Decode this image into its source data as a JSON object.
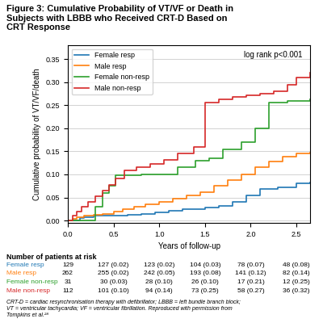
{
  "chart_data": {
    "type": "step",
    "title": "Figure 3: Cumulative Probability of VT/VF or Death in\nSubjects with LBBB who Received CRT-D Based on\nCRT Response",
    "xlabel": "Years of follow-up",
    "ylabel": "Cumulative probability of VT/VF/death",
    "annotation": "log rank p<0.001",
    "xlim": [
      0,
      2.65
    ],
    "ylim": [
      -0.005,
      0.38
    ],
    "xticks": [
      0.0,
      0.5,
      1.0,
      1.5,
      2.0,
      2.5
    ],
    "yticks": [
      {
        "value": 0.0,
        "label": "0.00"
      },
      {
        "value": 0.05,
        "label": "0.05"
      },
      {
        "value": 0.1,
        "label": "0.10"
      },
      {
        "value": 0.15,
        "label": "0.15"
      },
      {
        "value": 0.2,
        "label": "0.20"
      },
      {
        "value": 0.25,
        "label": "0.25"
      },
      {
        "value": 0.3,
        "label": "0.30"
      },
      {
        "value": 0.35,
        "label": "0.35"
      }
    ],
    "grid": "y",
    "legend": "upper left",
    "series": [
      {
        "name": "Female resp",
        "x": [
          0.0,
          0.08,
          0.13,
          0.18,
          0.28,
          0.38,
          0.5,
          0.65,
          0.8,
          0.95,
          1.1,
          1.25,
          1.5,
          1.65,
          1.8,
          1.95,
          2.1,
          2.3,
          2.5,
          2.65
        ],
        "values": [
          0.0,
          0.0,
          0.005,
          0.007,
          0.01,
          0.01,
          0.01,
          0.012,
          0.015,
          0.018,
          0.022,
          0.025,
          0.028,
          0.032,
          0.04,
          0.055,
          0.068,
          0.072,
          0.08,
          0.082
        ]
      },
      {
        "name": "Male resp",
        "x": [
          0.0,
          0.05,
          0.1,
          0.18,
          0.28,
          0.38,
          0.5,
          0.6,
          0.72,
          0.85,
          1.0,
          1.15,
          1.3,
          1.45,
          1.6,
          1.75,
          1.9,
          2.05,
          2.2,
          2.35,
          2.5,
          2.65
        ],
        "values": [
          0.0,
          0.003,
          0.007,
          0.01,
          0.012,
          0.015,
          0.02,
          0.025,
          0.03,
          0.035,
          0.04,
          0.048,
          0.055,
          0.062,
          0.075,
          0.088,
          0.1,
          0.115,
          0.128,
          0.138,
          0.145,
          0.147
        ]
      },
      {
        "name": "Female non-resp",
        "x": [
          0.0,
          0.1,
          0.2,
          0.3,
          0.38,
          0.45,
          0.52,
          0.65,
          0.8,
          1.0,
          1.2,
          1.4,
          1.55,
          1.7,
          1.9,
          2.05,
          2.2,
          2.4,
          2.65
        ],
        "values": [
          0.0,
          0.0,
          0.0,
          0.03,
          0.06,
          0.075,
          0.098,
          0.098,
          0.1,
          0.1,
          0.115,
          0.13,
          0.135,
          0.155,
          0.17,
          0.2,
          0.255,
          0.26,
          0.263
        ]
      },
      {
        "name": "Male non-resp",
        "x": [
          0.0,
          0.05,
          0.1,
          0.15,
          0.22,
          0.3,
          0.38,
          0.45,
          0.52,
          0.62,
          0.75,
          0.9,
          1.05,
          1.2,
          1.38,
          1.5,
          1.65,
          1.8,
          1.95,
          2.1,
          2.25,
          2.4,
          2.5,
          2.65
        ],
        "values": [
          0.0,
          0.01,
          0.02,
          0.03,
          0.04,
          0.052,
          0.065,
          0.078,
          0.092,
          0.108,
          0.115,
          0.122,
          0.132,
          0.145,
          0.16,
          0.255,
          0.262,
          0.268,
          0.272,
          0.275,
          0.28,
          0.295,
          0.31,
          0.32
        ]
      }
    ],
    "risk_table": {
      "header": "Number of patients at risk",
      "x": [
        0.0,
        0.5,
        1.0,
        1.5,
        2.0,
        2.5
      ],
      "rows": [
        {
          "name": "Female resp",
          "values": [
            "129",
            "127 (0.02)",
            "123 (0.02)",
            "104 (0.03)",
            "78 (0.07)",
            "48 (0.08)"
          ]
        },
        {
          "name": "Male resp",
          "values": [
            "262",
            "255 (0.02)",
            "242 (0.05)",
            "193 (0.08)",
            "141 (0.12)",
            "82 (0.14)"
          ]
        },
        {
          "name": "Female non-resp",
          "values": [
            "31",
            "30 (0.03)",
            "28 (0.10)",
            "26 (0.10)",
            "17 (0.21)",
            "12 (0.25)"
          ]
        },
        {
          "name": "Male non-resp",
          "values": [
            "112",
            "101 (0.10)",
            "94 (0.14)",
            "73 (0.25)",
            "58 (0.27)",
            "36 (0.32)"
          ]
        }
      ]
    },
    "footnote": "CRT-D = cardiac resynchronisation therapy with defibrillator; LBBB = left bundle branch block;\nVT = ventricular tachycardia; VF = ventricular fibrillation. Reproduced with permission from\nTompkins et al.²⁸"
  }
}
